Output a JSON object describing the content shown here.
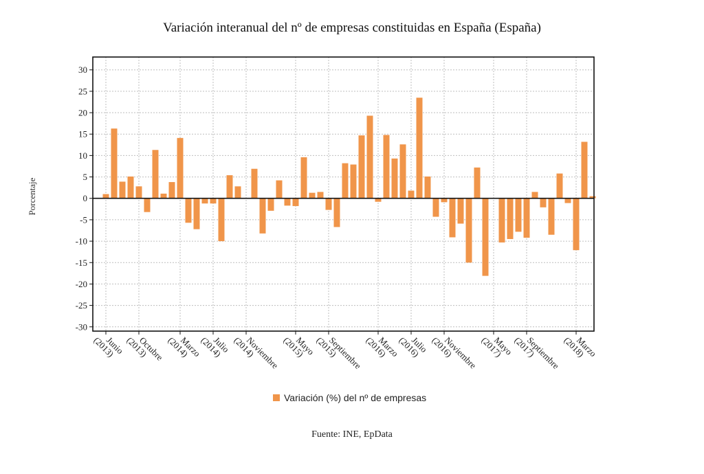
{
  "chart_data": {
    "type": "bar",
    "title": "Variación interanual del nº de empresas constituidas en España (España)",
    "ylabel": "Porcentaje",
    "ylim": [
      -31,
      33
    ],
    "yticks": [
      30,
      25,
      20,
      15,
      10,
      5,
      0,
      -5,
      -10,
      -15,
      -20,
      -25,
      -30
    ],
    "grid": true,
    "bar_color": "#f0954a",
    "series": [
      {
        "name": "Variación (%) del nº de empresas",
        "values": [
          1.0,
          16.3,
          3.9,
          5.1,
          2.8,
          -3.2,
          11.3,
          1.1,
          3.8,
          14.1,
          -5.7,
          -7.2,
          -1.2,
          -1.2,
          -10.0,
          5.4,
          2.8,
          0.0,
          6.9,
          -8.2,
          -2.9,
          4.2,
          -1.7,
          -1.8,
          9.6,
          1.3,
          1.5,
          -2.7,
          -6.7,
          8.2,
          7.9,
          14.7,
          19.3,
          -0.8,
          14.8,
          9.3,
          12.6,
          1.8,
          23.5,
          5.1,
          -4.3,
          -0.9,
          -9.1,
          -5.9,
          -15.0,
          7.2,
          -18.1,
          -0.1,
          -10.3,
          -9.5,
          -7.8,
          -9.2,
          1.5,
          -2.1,
          -8.5,
          5.8,
          -1.1,
          -12.1,
          13.2,
          0.5
        ]
      }
    ],
    "xtick_labels": [
      {
        "index": 0,
        "line1": "Junio",
        "line2": "(2013)"
      },
      {
        "index": 4,
        "line1": "Octubre",
        "line2": "(2013)"
      },
      {
        "index": 9,
        "line1": "Marzo",
        "line2": "(2014)"
      },
      {
        "index": 13,
        "line1": "Julio",
        "line2": "(2014)"
      },
      {
        "index": 17,
        "line1": "Noviembre",
        "line2": "(2014)"
      },
      {
        "index": 23,
        "line1": "Mayo",
        "line2": "(2015)"
      },
      {
        "index": 27,
        "line1": "Septiembre",
        "line2": "(2015)"
      },
      {
        "index": 33,
        "line1": "Marzo",
        "line2": "(2016)"
      },
      {
        "index": 37,
        "line1": "Julio",
        "line2": "(2016)"
      },
      {
        "index": 41,
        "line1": "Noviembre",
        "line2": "(2016)"
      },
      {
        "index": 47,
        "line1": "Mayo",
        "line2": "(2017)"
      },
      {
        "index": 51,
        "line1": "Septiembre",
        "line2": "(2017)"
      },
      {
        "index": 57,
        "line1": "Marzo",
        "line2": "(2018)"
      }
    ],
    "legend": {
      "placement": "bottom"
    },
    "source": "Fuente: INE, EpData"
  }
}
